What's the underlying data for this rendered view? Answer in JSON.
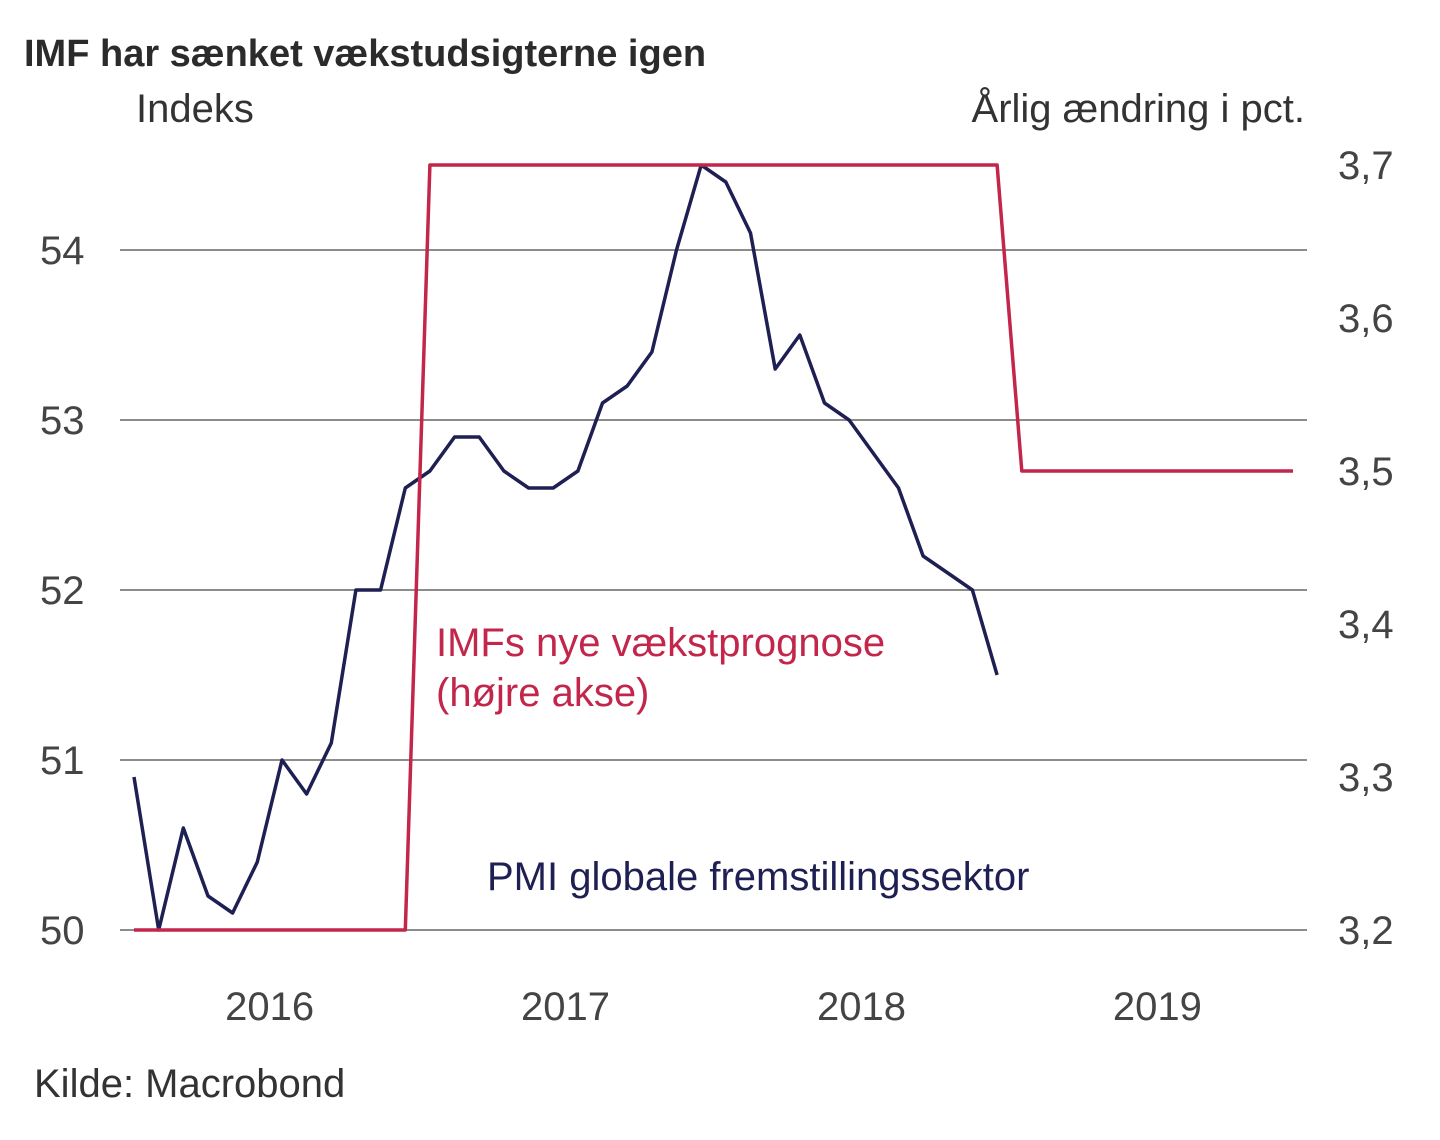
{
  "chart_data": {
    "type": "line",
    "title": "IMF har sænket vækstudsigterne igen",
    "ylabel_left": "Indeks",
    "ylabel_right": "Årlig ændring i pct.",
    "source": "Kilde: Macrobond",
    "x_ticks": [
      "2016",
      "2017",
      "2018",
      "2019"
    ],
    "y_left_ticks": [
      "50",
      "51",
      "52",
      "53",
      "54"
    ],
    "y_left_range": [
      50,
      54.6
    ],
    "y_right_ticks": [
      "3,2",
      "3,3",
      "3,4",
      "3,5",
      "3,6",
      "3,7"
    ],
    "y_right_range": [
      3.2,
      3.72
    ],
    "grid": true,
    "x_start": "2016-01",
    "x_frequency": "monthly",
    "series": [
      {
        "name": "PMI globale fremstillingssektor",
        "axis": "left",
        "color": "#1e1f52",
        "values": [
          50.9,
          50.0,
          50.6,
          50.2,
          50.1,
          50.4,
          51.0,
          50.8,
          51.1,
          52.0,
          52.0,
          52.6,
          52.7,
          52.9,
          52.9,
          52.7,
          52.6,
          52.6,
          52.7,
          53.1,
          53.2,
          53.4,
          54.0,
          54.5,
          54.4,
          54.1,
          53.3,
          53.5,
          53.1,
          53.0,
          52.8,
          52.6,
          52.2,
          52.1,
          52.0,
          51.5
        ]
      },
      {
        "name": "IMFs nye vækstprognose (højre akse)",
        "label_lines": [
          "IMFs nye vækstprognose",
          "(højre akse)"
        ],
        "axis": "right",
        "color": "#c2264b",
        "values": [
          3.2,
          3.2,
          3.2,
          3.2,
          3.2,
          3.2,
          3.2,
          3.2,
          3.2,
          3.2,
          3.2,
          3.2,
          3.7,
          3.7,
          3.7,
          3.7,
          3.7,
          3.7,
          3.7,
          3.7,
          3.7,
          3.7,
          3.7,
          3.7,
          3.7,
          3.7,
          3.7,
          3.7,
          3.7,
          3.7,
          3.7,
          3.7,
          3.7,
          3.7,
          3.7,
          3.7,
          3.5,
          3.5,
          3.5,
          3.5,
          3.5,
          3.5,
          3.5,
          3.5,
          3.5,
          3.5,
          3.5,
          3.5
        ]
      }
    ]
  }
}
